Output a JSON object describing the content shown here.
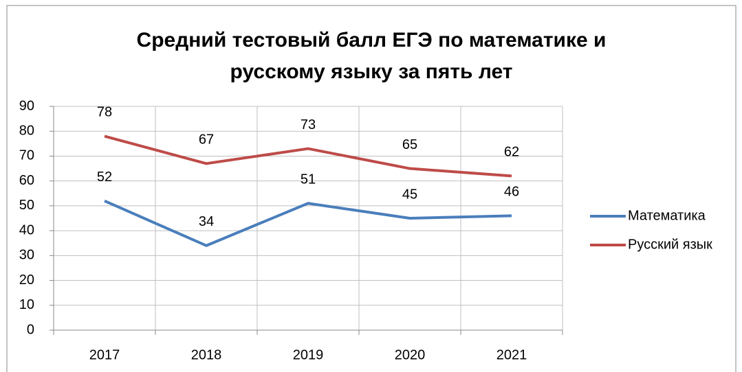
{
  "chart_data": {
    "type": "line",
    "title": "Средний тестовый балл ЕГЭ по математике и русскому языку за пять лет",
    "categories": [
      "2017",
      "2018",
      "2019",
      "2020",
      "2021"
    ],
    "series": [
      {
        "name": "Математика",
        "color": "#4a7ebb",
        "values": [
          52,
          34,
          51,
          45,
          46
        ]
      },
      {
        "name": "Русский язык",
        "color": "#be4b48",
        "values": [
          78,
          67,
          73,
          65,
          62
        ]
      }
    ],
    "ylim": [
      0,
      90
    ],
    "yticks": [
      0,
      10,
      20,
      30,
      40,
      50,
      60,
      70,
      80,
      90
    ],
    "grid": true,
    "legend": "right"
  }
}
